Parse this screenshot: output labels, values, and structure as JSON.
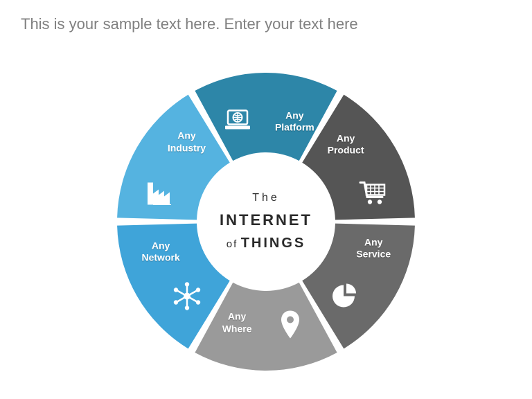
{
  "header": {
    "text": "This is your sample text here.  Enter your text here"
  },
  "center": {
    "line1": "The",
    "line2": "INTERNET",
    "line3_small": "of",
    "line3_big": "THINGS",
    "text_color": "#2a2a2a"
  },
  "donut": {
    "type": "donut-infographic",
    "outer_radius": 215,
    "inner_radius": 100,
    "gap_deg": 3,
    "background_color": "#ffffff",
    "segments": [
      {
        "key": "platform",
        "label_line1": "Any",
        "label_line2": "Platform",
        "color": "#2d86a8",
        "icon": "laptop-globe"
      },
      {
        "key": "product",
        "label_line1": "Any",
        "label_line2": "Product",
        "color": "#555555",
        "icon": "cart"
      },
      {
        "key": "service",
        "label_line1": "Any",
        "label_line2": "Service",
        "color": "#6a6a6a",
        "icon": "pie-chart"
      },
      {
        "key": "where",
        "label_line1": "Any",
        "label_line2": "Where",
        "color": "#9a9a9a",
        "icon": "pin"
      },
      {
        "key": "network",
        "label_line1": "Any",
        "label_line2": "Network",
        "color": "#3fa4d9",
        "icon": "hub"
      },
      {
        "key": "industry",
        "label_line1": "Any",
        "label_line2": "Industry",
        "color": "#55b3e0",
        "icon": "factory"
      }
    ],
    "label_fontsize": 14,
    "label_color": "#ffffff",
    "icon_color": "#ffffff"
  }
}
